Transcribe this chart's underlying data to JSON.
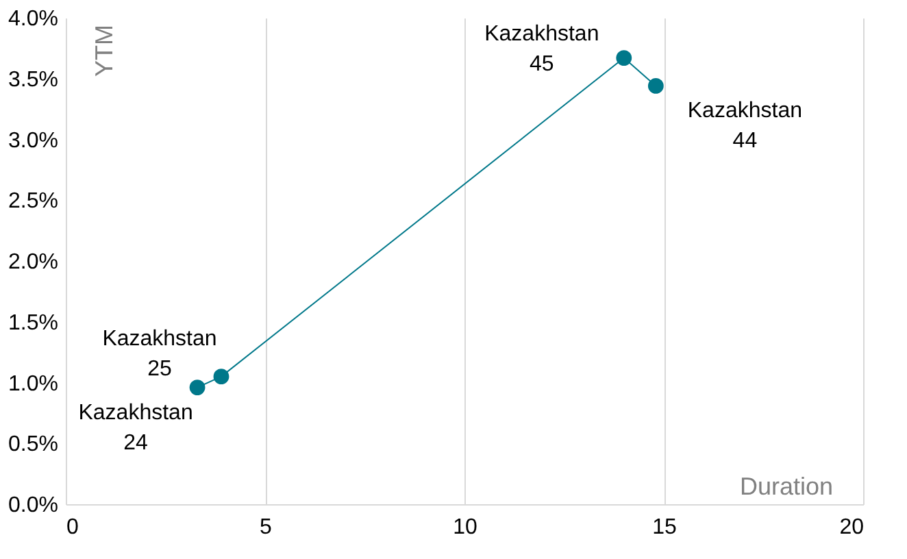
{
  "chart_data": {
    "type": "line",
    "xlabel": "Duration",
    "ylabel": "YTM",
    "x": [
      3.3,
      3.9,
      14.0,
      14.8
    ],
    "series": [
      {
        "color": "#00788a",
        "values": [
          0.96,
          1.05,
          3.67,
          3.44
        ]
      }
    ],
    "marker": "circle",
    "line_style": "solid",
    "grid": "x",
    "xlim": [
      0,
      20
    ],
    "xticks": [
      0,
      5,
      10,
      15,
      20
    ],
    "ylim": [
      0,
      4
    ],
    "yticks": [
      {
        "value": 0,
        "label": "0.0%"
      },
      {
        "value": 0.5,
        "label": "0.5%"
      },
      {
        "value": 1,
        "label": "1.0%"
      },
      {
        "value": 1.5,
        "label": "1.5%"
      },
      {
        "value": 2,
        "label": "2.0%"
      },
      {
        "value": 2.5,
        "label": "2.5%"
      },
      {
        "value": 3,
        "label": "3.0%"
      },
      {
        "value": 3.5,
        "label": "3.5%"
      },
      {
        "value": 4,
        "label": "4.0%"
      }
    ],
    "annotations": [
      {
        "text": "Kazakhstan\n24",
        "x": 3.3,
        "y": 0.96
      },
      {
        "text": "Kazakhstan\n25",
        "x": 3.9,
        "y": 1.05
      },
      {
        "text": "Kazakhstan\n45",
        "x": 14.0,
        "y": 3.67
      },
      {
        "text": "Kazakhstan\n44",
        "x": 14.8,
        "y": 3.44
      }
    ]
  }
}
